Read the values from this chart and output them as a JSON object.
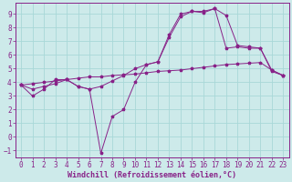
{
  "xlabel": "Windchill (Refroidissement éolien,°C)",
  "background_color": "#cdeaea",
  "grid_color": "#a8d8d8",
  "line_color": "#882288",
  "xlim": [
    -0.5,
    23.5
  ],
  "ylim": [
    -1.5,
    9.8
  ],
  "xticks": [
    0,
    1,
    2,
    3,
    4,
    5,
    6,
    7,
    8,
    9,
    10,
    11,
    12,
    13,
    14,
    15,
    16,
    17,
    18,
    19,
    20,
    21,
    22,
    23
  ],
  "yticks": [
    -1,
    0,
    1,
    2,
    3,
    4,
    5,
    6,
    7,
    8,
    9
  ],
  "series": [
    {
      "x": [
        0,
        1,
        2,
        3,
        4,
        5,
        6,
        7,
        8,
        9,
        10,
        11,
        12,
        13,
        14,
        15,
        16,
        17,
        18,
        19,
        20,
        21,
        22,
        23
      ],
      "y": [
        3.8,
        3.9,
        4.0,
        4.1,
        4.2,
        4.3,
        4.4,
        4.4,
        4.5,
        4.55,
        4.6,
        4.7,
        4.8,
        4.85,
        4.9,
        5.0,
        5.1,
        5.2,
        5.3,
        5.35,
        5.4,
        5.45,
        4.9,
        4.5
      ]
    },
    {
      "x": [
        0,
        1,
        2,
        3,
        4,
        5,
        6,
        7,
        8,
        9,
        10,
        11,
        12,
        13,
        14,
        15,
        16,
        17,
        18,
        19,
        20,
        21,
        22,
        23
      ],
      "y": [
        3.8,
        3.0,
        3.5,
        4.2,
        4.2,
        3.7,
        3.5,
        3.7,
        4.1,
        4.5,
        5.0,
        5.3,
        5.5,
        7.3,
        8.8,
        9.2,
        9.1,
        9.4,
        8.9,
        6.7,
        6.6,
        6.5,
        4.9,
        4.5
      ]
    },
    {
      "x": [
        0,
        1,
        2,
        3,
        4,
        5,
        6,
        7,
        8,
        9,
        10,
        11,
        12,
        13,
        14,
        15,
        16,
        17,
        18,
        19,
        20,
        21,
        22,
        23
      ],
      "y": [
        3.8,
        3.5,
        3.7,
        3.9,
        4.2,
        3.7,
        3.5,
        -1.2,
        1.5,
        2.0,
        4.0,
        5.3,
        5.5,
        7.5,
        9.0,
        9.2,
        9.2,
        9.4,
        6.5,
        6.6,
        6.5,
        6.5,
        4.8,
        4.5
      ]
    }
  ],
  "tick_fontsize": 5.5,
  "xlabel_fontsize": 6.0
}
